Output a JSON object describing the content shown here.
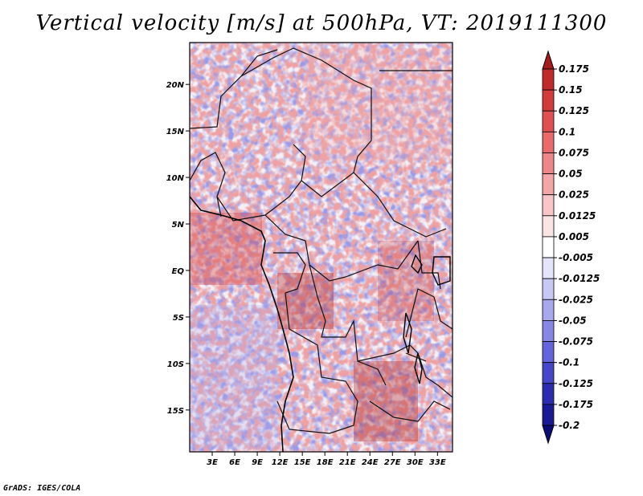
{
  "title": "Vertical velocity [m/s] at 500hPa, VT: 2019111300",
  "credit": "GrADS: IGES/COLA",
  "map": {
    "variable": "Vertical velocity",
    "units": "m/s",
    "level": "500hPa",
    "valid_time": "2019111300",
    "lon_range": [
      0,
      35
    ],
    "lat_range": [
      -19.5,
      24.5
    ],
    "lat_ticks": [
      {
        "value": 20,
        "label": "20N"
      },
      {
        "value": 15,
        "label": "15N"
      },
      {
        "value": 10,
        "label": "10N"
      },
      {
        "value": 5,
        "label": "5N"
      },
      {
        "value": 0,
        "label": "EQ"
      },
      {
        "value": -5,
        "label": "5S"
      },
      {
        "value": -10,
        "label": "10S"
      },
      {
        "value": -15,
        "label": "15S"
      }
    ],
    "lon_ticks": [
      {
        "value": 3,
        "label": "3E"
      },
      {
        "value": 6,
        "label": "6E"
      },
      {
        "value": 9,
        "label": "9E"
      },
      {
        "value": 12,
        "label": "12E"
      },
      {
        "value": 15,
        "label": "15E"
      },
      {
        "value": 18,
        "label": "18E"
      },
      {
        "value": 21,
        "label": "21E"
      },
      {
        "value": 24,
        "label": "24E"
      },
      {
        "value": 27,
        "label": "27E"
      },
      {
        "value": 30,
        "label": "30E"
      },
      {
        "value": 33,
        "label": "33E"
      }
    ]
  },
  "colorbar": {
    "labels": [
      "0.175",
      "0.15",
      "0.125",
      "0.1",
      "0.075",
      "0.05",
      "0.025",
      "0.0125",
      "0.005",
      "-0.005",
      "-0.0125",
      "-0.025",
      "-0.05",
      "-0.075",
      "-0.1",
      "-0.125",
      "-0.175",
      "-0.2"
    ],
    "colors": [
      "#a51a1a",
      "#c22a2a",
      "#d43c3c",
      "#e05050",
      "#ea6a6a",
      "#ef8686",
      "#f4a6a6",
      "#f8c6c6",
      "#fbe4e4",
      "#ffffff",
      "#e4e4fb",
      "#c8c8f4",
      "#a8a8ee",
      "#8686e6",
      "#6464dc",
      "#4646c8",
      "#2c2cb0",
      "#1a1a96",
      "#0c0c78"
    ]
  }
}
